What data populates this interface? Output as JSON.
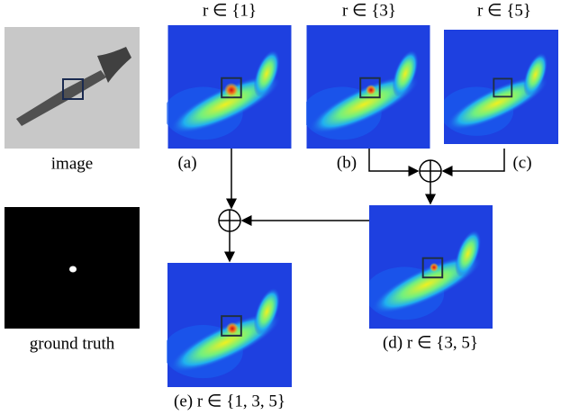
{
  "image_label": "image",
  "ground_truth_label": "ground truth",
  "maps": [
    {
      "title": "r ∈ {1}",
      "tag": "(a)"
    },
    {
      "title": "r ∈ {3}",
      "tag": "(b)"
    },
    {
      "title": "r ∈ {5}",
      "tag": "(c)"
    }
  ],
  "combined": [
    {
      "label": "(d) r ∈ {3, 5}"
    },
    {
      "label": "(e) r ∈ {1, 3, 5}"
    }
  ]
}
